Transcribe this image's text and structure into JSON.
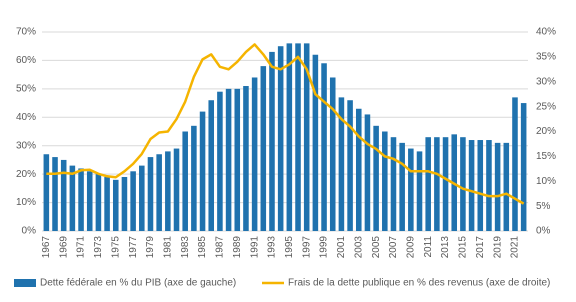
{
  "chart_data": {
    "type": "bar_line",
    "categories": [
      "1967",
      null,
      "1969",
      null,
      "1971",
      null,
      "1973",
      null,
      "1975",
      null,
      "1977",
      null,
      "1979",
      null,
      "1981",
      null,
      "1983",
      null,
      "1985",
      null,
      "1987",
      null,
      "1989",
      null,
      "1991",
      null,
      "1993",
      null,
      "1995",
      null,
      "1997",
      null,
      "1999",
      null,
      "2001",
      null,
      "2003",
      null,
      "2005",
      null,
      "2007",
      null,
      "2009",
      null,
      "2011",
      null,
      "2013",
      null,
      "2015",
      null,
      "2017",
      null,
      "2019",
      null,
      "2021",
      null
    ],
    "series": [
      {
        "name": "Dette fédérale en % du PIB (axe de gauche)",
        "type": "bar",
        "color": "#1f72ae",
        "values": [
          27,
          26,
          25,
          23,
          22,
          21,
          20,
          19,
          18,
          19,
          21,
          23,
          26,
          27,
          28,
          29,
          35,
          37,
          42,
          46,
          49,
          50,
          50,
          51,
          54,
          58,
          63,
          65,
          66,
          66,
          66,
          62,
          59,
          54,
          47,
          46,
          43,
          41,
          37,
          35,
          33,
          31,
          29,
          28,
          33,
          33,
          33,
          34,
          33,
          32,
          32,
          32,
          31,
          31,
          47,
          45
        ]
      },
      {
        "name": "Frais de la dette publique en % des revenus (axe de droite)",
        "type": "line",
        "axis": "y2",
        "color": "#f5b400",
        "values": [
          11.5,
          11.5,
          11.7,
          11.5,
          12.2,
          12.3,
          11.5,
          11,
          10.8,
          12,
          13.5,
          15.5,
          18.5,
          19.8,
          20,
          22.5,
          26,
          31,
          34.5,
          35.5,
          33,
          32.5,
          34,
          36,
          37.5,
          35.5,
          33,
          32.5,
          33.5,
          35,
          32.5,
          27.5,
          26,
          24.5,
          22.5,
          21,
          19,
          17.5,
          16.5,
          15,
          14.5,
          13.5,
          12,
          12,
          12,
          11.5,
          10.5,
          9.5,
          8.5,
          8,
          7.5,
          7,
          7,
          7.5,
          6.5,
          5.5
        ]
      }
    ],
    "ylim": [
      0,
      70
    ],
    "yticks": [
      {
        "value": 0,
        "label": "0%"
      },
      {
        "value": 10,
        "label": "10%"
      },
      {
        "value": 20,
        "label": "20%"
      },
      {
        "value": 30,
        "label": "30%"
      },
      {
        "value": 40,
        "label": "40%"
      },
      {
        "value": 50,
        "label": "50%"
      },
      {
        "value": 60,
        "label": "60%"
      },
      {
        "value": 70,
        "label": "70%"
      }
    ],
    "y2lim": [
      0,
      40
    ],
    "y2ticks": [
      {
        "value": 0,
        "label": "0%"
      },
      {
        "value": 5,
        "label": "5%"
      },
      {
        "value": 10,
        "label": "10%"
      },
      {
        "value": 15,
        "label": "15%"
      },
      {
        "value": 20,
        "label": "20%"
      },
      {
        "value": 25,
        "label": "25%"
      },
      {
        "value": 30,
        "label": "30%"
      },
      {
        "value": 35,
        "label": "35%"
      },
      {
        "value": 40,
        "label": "40%"
      }
    ],
    "grid": true,
    "legend": "bottom"
  }
}
